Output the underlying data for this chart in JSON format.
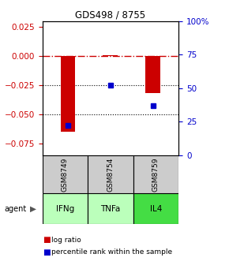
{
  "title": "GDS498 / 8755",
  "samples": [
    "GSM8749",
    "GSM8754",
    "GSM8759"
  ],
  "agents": [
    "IFNg",
    "TNFa",
    "IL4"
  ],
  "log_ratios": [
    -0.065,
    0.001,
    -0.032
  ],
  "percentile_ranks": [
    0.22,
    0.52,
    0.37
  ],
  "bar_color": "#cc0000",
  "dot_color": "#0000cc",
  "ylim_left": [
    -0.085,
    0.03
  ],
  "ylim_right": [
    0.0,
    1.0
  ],
  "yticks_left": [
    0.025,
    0.0,
    -0.025,
    -0.05,
    -0.075
  ],
  "yticks_right": [
    1.0,
    0.75,
    0.5,
    0.25,
    0.0
  ],
  "ytick_labels_right": [
    "100%",
    "75",
    "50",
    "25",
    "0"
  ],
  "hline_zero": 0.0,
  "hline_dotted": [
    -0.025,
    -0.05
  ],
  "agent_colors": [
    "#bbffbb",
    "#bbffbb",
    "#44dd44"
  ],
  "gray_color": "#cccccc",
  "agent_label": "agent",
  "legend_log": "log ratio",
  "legend_pct": "percentile rank within the sample",
  "bar_width": 0.35,
  "x_positions": [
    0,
    1,
    2
  ]
}
